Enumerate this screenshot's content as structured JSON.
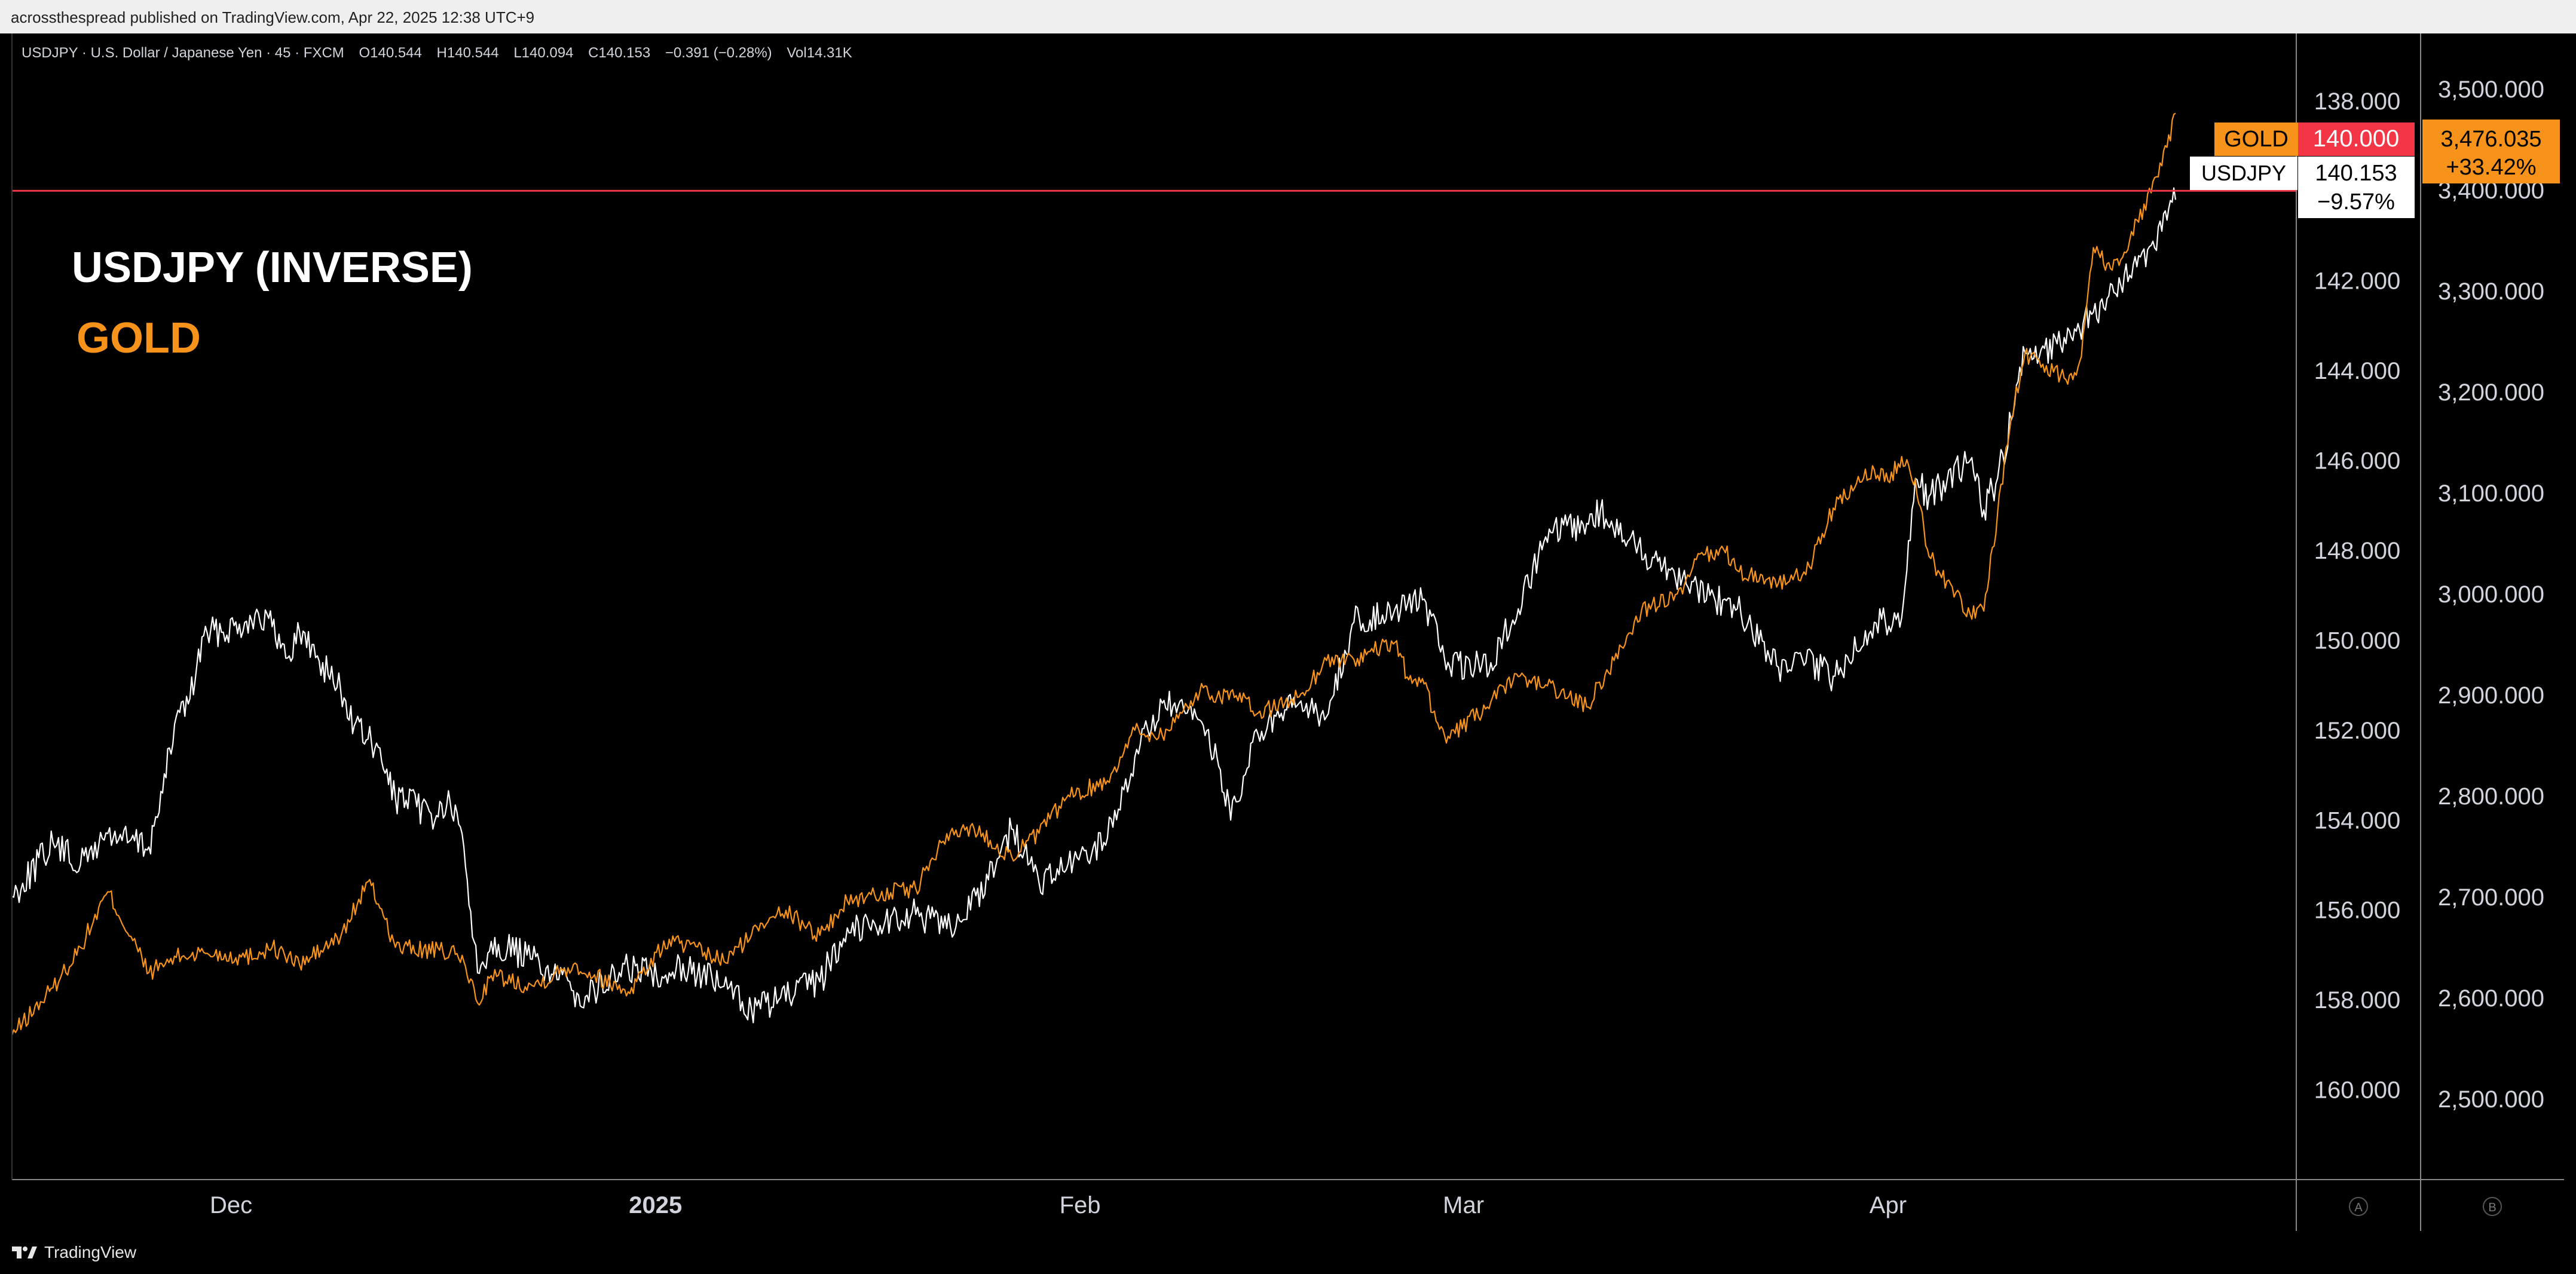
{
  "header": {
    "published": "acrossthespread published on TradingView.com, Apr 22, 2025 12:38 UTC+9"
  },
  "chart_info": {
    "symbol_line": "USDJPY · U.S. Dollar / Japanese Yen · 45 · FXCM",
    "open": "O140.544",
    "high": "H140.544",
    "low": "L140.094",
    "close": "C140.153",
    "change": "−0.391 (−0.28%)",
    "volume": "Vol14.31K"
  },
  "annotations": {
    "title_white": "USDJPY (INVERSE)",
    "title_orange": "GOLD"
  },
  "price_tags": {
    "gold_name": "GOLD",
    "gold_line_value": "140.000",
    "usdjpy_name": "USDJPY",
    "usdjpy_value": "140.153",
    "usdjpy_change": "−9.57%",
    "gold_value": "3,476.035",
    "gold_change": "+33.42%"
  },
  "scale_badges": {
    "a": "A",
    "b": "B"
  },
  "footer": {
    "brand": "TradingView"
  },
  "colors": {
    "background": "#000000",
    "usdjpy": "#ffffff",
    "gold": "#f7931a",
    "hline": "#f23645",
    "axis_text": "#d1d4dc"
  },
  "chart_data": {
    "type": "line",
    "title": "",
    "x_tick_labels": [
      "Dec",
      "2025",
      "Feb",
      "Mar",
      "Apr"
    ],
    "x_tick_dates": [
      "2024-12-01",
      "2025-01-01",
      "2025-02-01",
      "2025-03-01",
      "2025-04-01"
    ],
    "x_range": [
      "2024-11-15",
      "2025-04-22"
    ],
    "left_axis": {
      "series": "USDJPY",
      "inverted": true,
      "range": [
        162.0,
        136.5
      ],
      "ticks": [
        138,
        142,
        144,
        146,
        148,
        150,
        152,
        154,
        156,
        158,
        160
      ],
      "tick_labels": [
        "138.000",
        "142.000",
        "144.000",
        "146.000",
        "148.000",
        "150.000",
        "152.000",
        "154.000",
        "156.000",
        "158.000",
        "160.000"
      ]
    },
    "right_axis": {
      "series": "GOLD",
      "inverted": false,
      "range": [
        2420,
        3555
      ],
      "ticks": [
        2500,
        2600,
        2700,
        2800,
        2900,
        3000,
        3100,
        3200,
        3300,
        3400,
        3500
      ],
      "tick_labels": [
        "2,500.000",
        "2,600.000",
        "2,700.000",
        "2,800.000",
        "2,900.000",
        "3,000.000",
        "3,100.000",
        "3,200.000",
        "3,300.000",
        "3,400.000",
        "3,500.000"
      ]
    },
    "horizontal_line": {
      "axis": "left",
      "value": 140.0
    },
    "series": [
      {
        "name": "USDJPY",
        "axis": "left",
        "points": [
          [
            "2024-11-15",
            155.7
          ],
          [
            "2024-11-18",
            154.5
          ],
          [
            "2024-11-20",
            155.0
          ],
          [
            "2024-11-22",
            154.3
          ],
          [
            "2024-11-25",
            154.6
          ],
          [
            "2024-11-26",
            153.4
          ],
          [
            "2024-11-27",
            151.7
          ],
          [
            "2024-11-28",
            151.3
          ],
          [
            "2024-11-29",
            149.9
          ],
          [
            "2024-12-02",
            149.6
          ],
          [
            "2024-12-03",
            149.4
          ],
          [
            "2024-12-04",
            149.7
          ],
          [
            "2024-12-05",
            150.4
          ],
          [
            "2024-12-06",
            149.8
          ],
          [
            "2024-12-09",
            151.1
          ],
          [
            "2024-12-10",
            151.9
          ],
          [
            "2024-12-11",
            152.2
          ],
          [
            "2024-12-12",
            152.7
          ],
          [
            "2024-12-13",
            153.5
          ],
          [
            "2024-12-16",
            153.9
          ],
          [
            "2024-12-17",
            153.6
          ],
          [
            "2024-12-18",
            154.6
          ],
          [
            "2024-12-19",
            157.4
          ],
          [
            "2024-12-20",
            156.7
          ],
          [
            "2024-12-23",
            157.1
          ],
          [
            "2024-12-24",
            157.3
          ],
          [
            "2024-12-26",
            157.8
          ],
          [
            "2024-12-27",
            157.9
          ],
          [
            "2024-12-30",
            157.3
          ],
          [
            "2025-01-02",
            157.4
          ],
          [
            "2025-01-03",
            157.2
          ],
          [
            "2025-01-06",
            157.7
          ],
          [
            "2025-01-08",
            158.2
          ],
          [
            "2025-01-10",
            158.0
          ],
          [
            "2025-01-13",
            157.6
          ],
          [
            "2025-01-15",
            156.4
          ],
          [
            "2025-01-17",
            156.3
          ],
          [
            "2025-01-20",
            156.1
          ],
          [
            "2025-01-22",
            156.4
          ],
          [
            "2025-01-24",
            156.0
          ],
          [
            "2025-01-27",
            154.2
          ],
          [
            "2025-01-29",
            155.4
          ],
          [
            "2025-01-31",
            155.1
          ],
          [
            "2025-02-03",
            154.4
          ],
          [
            "2025-02-05",
            152.6
          ],
          [
            "2025-02-07",
            151.4
          ],
          [
            "2025-02-10",
            151.9
          ],
          [
            "2025-02-11",
            152.6
          ],
          [
            "2025-02-12",
            154.0
          ],
          [
            "2025-02-14",
            152.1
          ],
          [
            "2025-02-17",
            151.4
          ],
          [
            "2025-02-19",
            151.7
          ],
          [
            "2025-02-21",
            149.6
          ],
          [
            "2025-02-24",
            149.3
          ],
          [
            "2025-02-26",
            149.1
          ],
          [
            "2025-02-28",
            150.6
          ],
          [
            "2025-03-03",
            150.5
          ],
          [
            "2025-03-05",
            149.3
          ],
          [
            "2025-03-07",
            147.7
          ],
          [
            "2025-03-10",
            147.4
          ],
          [
            "2025-03-11",
            147.1
          ],
          [
            "2025-03-13",
            147.8
          ],
          [
            "2025-03-17",
            148.6
          ],
          [
            "2025-03-19",
            149.0
          ],
          [
            "2025-03-21",
            149.3
          ],
          [
            "2025-03-24",
            150.6
          ],
          [
            "2025-03-26",
            150.5
          ],
          [
            "2025-03-28",
            150.8
          ],
          [
            "2025-03-31",
            149.6
          ],
          [
            "2025-04-02",
            149.5
          ],
          [
            "2025-04-03",
            146.4
          ],
          [
            "2025-04-04",
            146.8
          ],
          [
            "2025-04-07",
            146.0
          ],
          [
            "2025-04-08",
            147.1
          ],
          [
            "2025-04-09",
            146.4
          ],
          [
            "2025-04-10",
            145.1
          ],
          [
            "2025-04-11",
            143.6
          ],
          [
            "2025-04-14",
            143.4
          ],
          [
            "2025-04-15",
            143.1
          ],
          [
            "2025-04-16",
            142.7
          ],
          [
            "2025-04-17",
            142.4
          ],
          [
            "2025-04-18",
            142.1
          ],
          [
            "2025-04-21",
            140.9
          ],
          [
            "2025-04-22",
            140.2
          ]
        ]
      },
      {
        "name": "GOLD",
        "axis": "right",
        "points": [
          [
            "2024-11-15",
            2563
          ],
          [
            "2024-11-18",
            2610
          ],
          [
            "2024-11-20",
            2650
          ],
          [
            "2024-11-22",
            2705
          ],
          [
            "2024-11-25",
            2625
          ],
          [
            "2024-11-27",
            2640
          ],
          [
            "2024-11-29",
            2645
          ],
          [
            "2024-12-02",
            2640
          ],
          [
            "2024-12-04",
            2650
          ],
          [
            "2024-12-06",
            2633
          ],
          [
            "2024-12-09",
            2660
          ],
          [
            "2024-12-11",
            2715
          ],
          [
            "2024-12-12",
            2688
          ],
          [
            "2024-12-13",
            2650
          ],
          [
            "2024-12-17",
            2645
          ],
          [
            "2024-12-18",
            2636
          ],
          [
            "2024-12-19",
            2595
          ],
          [
            "2024-12-20",
            2622
          ],
          [
            "2024-12-23",
            2612
          ],
          [
            "2024-12-26",
            2633
          ],
          [
            "2024-12-30",
            2606
          ],
          [
            "2024-12-31",
            2624
          ],
          [
            "2025-01-02",
            2658
          ],
          [
            "2025-01-06",
            2636
          ],
          [
            "2025-01-08",
            2662
          ],
          [
            "2025-01-10",
            2690
          ],
          [
            "2025-01-13",
            2662
          ],
          [
            "2025-01-15",
            2696
          ],
          [
            "2025-01-17",
            2702
          ],
          [
            "2025-01-20",
            2708
          ],
          [
            "2025-01-22",
            2755
          ],
          [
            "2025-01-24",
            2770
          ],
          [
            "2025-01-27",
            2740
          ],
          [
            "2025-01-29",
            2763
          ],
          [
            "2025-01-31",
            2798
          ],
          [
            "2025-02-03",
            2815
          ],
          [
            "2025-02-05",
            2865
          ],
          [
            "2025-02-07",
            2860
          ],
          [
            "2025-02-10",
            2907
          ],
          [
            "2025-02-11",
            2898
          ],
          [
            "2025-02-12",
            2903
          ],
          [
            "2025-02-14",
            2882
          ],
          [
            "2025-02-17",
            2898
          ],
          [
            "2025-02-19",
            2934
          ],
          [
            "2025-02-21",
            2935
          ],
          [
            "2025-02-24",
            2952
          ],
          [
            "2025-02-25",
            2915
          ],
          [
            "2025-02-26",
            2916
          ],
          [
            "2025-02-27",
            2874
          ],
          [
            "2025-02-28",
            2857
          ],
          [
            "2025-03-03",
            2893
          ],
          [
            "2025-03-05",
            2918
          ],
          [
            "2025-03-07",
            2910
          ],
          [
            "2025-03-10",
            2888
          ],
          [
            "2025-03-12",
            2934
          ],
          [
            "2025-03-14",
            2984
          ],
          [
            "2025-03-17",
            3000
          ],
          [
            "2025-03-18",
            3034
          ],
          [
            "2025-03-20",
            3044
          ],
          [
            "2025-03-21",
            3023
          ],
          [
            "2025-03-24",
            3011
          ],
          [
            "2025-03-26",
            3019
          ],
          [
            "2025-03-28",
            3085
          ],
          [
            "2025-03-31",
            3123
          ],
          [
            "2025-04-01",
            3112
          ],
          [
            "2025-04-02",
            3136
          ],
          [
            "2025-04-03",
            3114
          ],
          [
            "2025-04-04",
            3037
          ],
          [
            "2025-04-07",
            2980
          ],
          [
            "2025-04-08",
            2983
          ],
          [
            "2025-04-09",
            3080
          ],
          [
            "2025-04-10",
            3175
          ],
          [
            "2025-04-11",
            3238
          ],
          [
            "2025-04-14",
            3212
          ],
          [
            "2025-04-15",
            3230
          ],
          [
            "2025-04-16",
            3343
          ],
          [
            "2025-04-17",
            3327
          ],
          [
            "2025-04-18",
            3331
          ],
          [
            "2025-04-21",
            3424
          ],
          [
            "2025-04-22",
            3476
          ]
        ]
      }
    ]
  }
}
